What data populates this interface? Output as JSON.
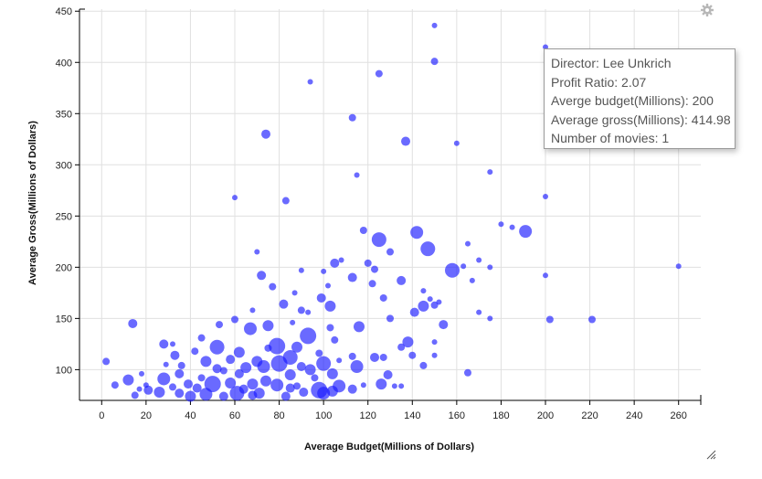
{
  "chart_data": {
    "type": "scatter",
    "xlabel": "Average Budget(Millions of Dollars)",
    "ylabel": "Average Gross(Millions of Dollars)",
    "xlim": [
      -10,
      270
    ],
    "ylim": [
      70,
      452
    ],
    "x_ticks": [
      0,
      20,
      40,
      60,
      80,
      100,
      120,
      140,
      160,
      180,
      200,
      220,
      240,
      260
    ],
    "y_ticks": [
      100,
      150,
      200,
      250,
      300,
      350,
      400,
      450
    ],
    "grid": true,
    "color": "#1a1aff",
    "points": [
      {
        "x": 150,
        "y": 436,
        "r": 3
      },
      {
        "x": 200,
        "y": 415,
        "r": 3
      },
      {
        "x": 150,
        "y": 401,
        "r": 4
      },
      {
        "x": 125,
        "y": 389,
        "r": 4
      },
      {
        "x": 94,
        "y": 381,
        "r": 3
      },
      {
        "x": 113,
        "y": 346,
        "r": 4
      },
      {
        "x": 74,
        "y": 330,
        "r": 5
      },
      {
        "x": 137,
        "y": 323,
        "r": 5
      },
      {
        "x": 160,
        "y": 321,
        "r": 3
      },
      {
        "x": 175,
        "y": 293,
        "r": 3
      },
      {
        "x": 115,
        "y": 290,
        "r": 3
      },
      {
        "x": 200,
        "y": 269,
        "r": 3
      },
      {
        "x": 60,
        "y": 268,
        "r": 3
      },
      {
        "x": 83,
        "y": 265,
        "r": 4
      },
      {
        "x": 180,
        "y": 242,
        "r": 3
      },
      {
        "x": 185,
        "y": 239,
        "r": 3
      },
      {
        "x": 191,
        "y": 235,
        "r": 7
      },
      {
        "x": 142,
        "y": 234,
        "r": 7
      },
      {
        "x": 118,
        "y": 236,
        "r": 4
      },
      {
        "x": 125,
        "y": 227,
        "r": 8
      },
      {
        "x": 165,
        "y": 223,
        "r": 3
      },
      {
        "x": 147,
        "y": 218,
        "r": 8
      },
      {
        "x": 130,
        "y": 215,
        "r": 4
      },
      {
        "x": 70,
        "y": 215,
        "r": 3
      },
      {
        "x": 105,
        "y": 204,
        "r": 5
      },
      {
        "x": 108,
        "y": 207,
        "r": 3
      },
      {
        "x": 120,
        "y": 204,
        "r": 4
      },
      {
        "x": 170,
        "y": 207,
        "r": 3
      },
      {
        "x": 158,
        "y": 197,
        "r": 8
      },
      {
        "x": 163,
        "y": 201,
        "r": 3
      },
      {
        "x": 175,
        "y": 200,
        "r": 3
      },
      {
        "x": 260,
        "y": 201,
        "r": 3
      },
      {
        "x": 200,
        "y": 192,
        "r": 3
      },
      {
        "x": 72,
        "y": 192,
        "r": 5
      },
      {
        "x": 90,
        "y": 197,
        "r": 3
      },
      {
        "x": 100,
        "y": 196,
        "r": 3
      },
      {
        "x": 113,
        "y": 190,
        "r": 5
      },
      {
        "x": 123,
        "y": 198,
        "r": 4
      },
      {
        "x": 135,
        "y": 187,
        "r": 5
      },
      {
        "x": 167,
        "y": 187,
        "r": 3
      },
      {
        "x": 77,
        "y": 181,
        "r": 4
      },
      {
        "x": 102,
        "y": 182,
        "r": 3
      },
      {
        "x": 122,
        "y": 184,
        "r": 4
      },
      {
        "x": 145,
        "y": 177,
        "r": 3
      },
      {
        "x": 87,
        "y": 175,
        "r": 3
      },
      {
        "x": 99,
        "y": 170,
        "r": 5
      },
      {
        "x": 127,
        "y": 170,
        "r": 4
      },
      {
        "x": 148,
        "y": 169,
        "r": 3
      },
      {
        "x": 152,
        "y": 166,
        "r": 3
      },
      {
        "x": 150,
        "y": 163,
        "r": 4
      },
      {
        "x": 82,
        "y": 164,
        "r": 5
      },
      {
        "x": 103,
        "y": 162,
        "r": 6
      },
      {
        "x": 145,
        "y": 162,
        "r": 6
      },
      {
        "x": 141,
        "y": 156,
        "r": 5
      },
      {
        "x": 90,
        "y": 158,
        "r": 4
      },
      {
        "x": 170,
        "y": 156,
        "r": 3
      },
      {
        "x": 175,
        "y": 150,
        "r": 3
      },
      {
        "x": 68,
        "y": 158,
        "r": 3
      },
      {
        "x": 202,
        "y": 149,
        "r": 4
      },
      {
        "x": 221,
        "y": 149,
        "r": 4
      },
      {
        "x": 93,
        "y": 156,
        "r": 3
      },
      {
        "x": 130,
        "y": 150,
        "r": 4
      },
      {
        "x": 60,
        "y": 149,
        "r": 4
      },
      {
        "x": 14,
        "y": 145,
        "r": 5
      },
      {
        "x": 53,
        "y": 144,
        "r": 4
      },
      {
        "x": 154,
        "y": 144,
        "r": 5
      },
      {
        "x": 75,
        "y": 143,
        "r": 6
      },
      {
        "x": 86,
        "y": 146,
        "r": 3
      },
      {
        "x": 116,
        "y": 142,
        "r": 6
      },
      {
        "x": 103,
        "y": 141,
        "r": 4
      },
      {
        "x": 67,
        "y": 140,
        "r": 7
      },
      {
        "x": 93,
        "y": 133,
        "r": 9
      },
      {
        "x": 45,
        "y": 131,
        "r": 4
      },
      {
        "x": 105,
        "y": 129,
        "r": 4
      },
      {
        "x": 138,
        "y": 127,
        "r": 6
      },
      {
        "x": 150,
        "y": 127,
        "r": 3
      },
      {
        "x": 28,
        "y": 125,
        "r": 5
      },
      {
        "x": 32,
        "y": 125,
        "r": 3
      },
      {
        "x": 52,
        "y": 122,
        "r": 8
      },
      {
        "x": 79,
        "y": 123,
        "r": 9
      },
      {
        "x": 75,
        "y": 121,
        "r": 4
      },
      {
        "x": 88,
        "y": 122,
        "r": 6
      },
      {
        "x": 135,
        "y": 122,
        "r": 4
      },
      {
        "x": 42,
        "y": 118,
        "r": 4
      },
      {
        "x": 33,
        "y": 114,
        "r": 5
      },
      {
        "x": 62,
        "y": 117,
        "r": 6
      },
      {
        "x": 85,
        "y": 112,
        "r": 8
      },
      {
        "x": 98,
        "y": 116,
        "r": 4
      },
      {
        "x": 113,
        "y": 113,
        "r": 4
      },
      {
        "x": 123,
        "y": 112,
        "r": 5
      },
      {
        "x": 127,
        "y": 112,
        "r": 4
      },
      {
        "x": 140,
        "y": 114,
        "r": 4
      },
      {
        "x": 150,
        "y": 114,
        "r": 3
      },
      {
        "x": 2,
        "y": 108,
        "r": 4
      },
      {
        "x": 47,
        "y": 108,
        "r": 6
      },
      {
        "x": 58,
        "y": 110,
        "r": 5
      },
      {
        "x": 70,
        "y": 108,
        "r": 6
      },
      {
        "x": 80,
        "y": 106,
        "r": 9
      },
      {
        "x": 100,
        "y": 106,
        "r": 8
      },
      {
        "x": 107,
        "y": 109,
        "r": 3
      },
      {
        "x": 29,
        "y": 105,
        "r": 3
      },
      {
        "x": 36,
        "y": 104,
        "r": 4
      },
      {
        "x": 145,
        "y": 104,
        "r": 4
      },
      {
        "x": 65,
        "y": 102,
        "r": 6
      },
      {
        "x": 73,
        "y": 103,
        "r": 7
      },
      {
        "x": 90,
        "y": 103,
        "r": 5
      },
      {
        "x": 94,
        "y": 100,
        "r": 6
      },
      {
        "x": 115,
        "y": 103,
        "r": 7
      },
      {
        "x": 52,
        "y": 101,
        "r": 5
      },
      {
        "x": 55,
        "y": 99,
        "r": 4
      },
      {
        "x": 165,
        "y": 97,
        "r": 4
      },
      {
        "x": 18,
        "y": 96,
        "r": 3
      },
      {
        "x": 35,
        "y": 96,
        "r": 5
      },
      {
        "x": 62,
        "y": 96,
        "r": 5
      },
      {
        "x": 85,
        "y": 95,
        "r": 6
      },
      {
        "x": 104,
        "y": 96,
        "r": 6
      },
      {
        "x": 129,
        "y": 95,
        "r": 5
      },
      {
        "x": 12,
        "y": 90,
        "r": 6
      },
      {
        "x": 28,
        "y": 91,
        "r": 7
      },
      {
        "x": 45,
        "y": 92,
        "r": 4
      },
      {
        "x": 74,
        "y": 89,
        "r": 6
      },
      {
        "x": 96,
        "y": 92,
        "r": 4
      },
      {
        "x": 6,
        "y": 85,
        "r": 4
      },
      {
        "x": 20,
        "y": 85,
        "r": 3
      },
      {
        "x": 39,
        "y": 86,
        "r": 5
      },
      {
        "x": 50,
        "y": 86,
        "r": 9
      },
      {
        "x": 58,
        "y": 87,
        "r": 6
      },
      {
        "x": 68,
        "y": 86,
        "r": 6
      },
      {
        "x": 79,
        "y": 85,
        "r": 7
      },
      {
        "x": 88,
        "y": 84,
        "r": 4
      },
      {
        "x": 107,
        "y": 84,
        "r": 7
      },
      {
        "x": 118,
        "y": 85,
        "r": 3
      },
      {
        "x": 126,
        "y": 86,
        "r": 6
      },
      {
        "x": 132,
        "y": 84,
        "r": 3
      },
      {
        "x": 135,
        "y": 84,
        "r": 3
      },
      {
        "x": 17,
        "y": 81,
        "r": 3
      },
      {
        "x": 32,
        "y": 83,
        "r": 4
      },
      {
        "x": 43,
        "y": 82,
        "r": 5
      },
      {
        "x": 64,
        "y": 81,
        "r": 5
      },
      {
        "x": 85,
        "y": 82,
        "r": 5
      },
      {
        "x": 98,
        "y": 80,
        "r": 9
      },
      {
        "x": 113,
        "y": 81,
        "r": 5
      },
      {
        "x": 21,
        "y": 80,
        "r": 5
      },
      {
        "x": 26,
        "y": 78,
        "r": 6
      },
      {
        "x": 35,
        "y": 77,
        "r": 5
      },
      {
        "x": 47,
        "y": 76,
        "r": 7
      },
      {
        "x": 61,
        "y": 77,
        "r": 8
      },
      {
        "x": 71,
        "y": 77,
        "r": 6
      },
      {
        "x": 91,
        "y": 78,
        "r": 5
      },
      {
        "x": 100,
        "y": 77,
        "r": 7
      },
      {
        "x": 104,
        "y": 79,
        "r": 6
      },
      {
        "x": 15,
        "y": 75,
        "r": 4
      },
      {
        "x": 40,
        "y": 74,
        "r": 6
      },
      {
        "x": 55,
        "y": 74,
        "r": 5
      },
      {
        "x": 68,
        "y": 75,
        "r": 5
      },
      {
        "x": 83,
        "y": 74,
        "r": 5
      }
    ]
  },
  "tooltip": {
    "line1": "Director: Lee Unkrich",
    "line2": "Profit Ratio: 2.07",
    "line3": "Averge budget(Millions): 200",
    "line4": "Average gross(Millions): 414.98",
    "line5": "Number of movies: 1"
  },
  "icons": {
    "settings": "gear-icon",
    "resize": "resize-handle-icon"
  }
}
